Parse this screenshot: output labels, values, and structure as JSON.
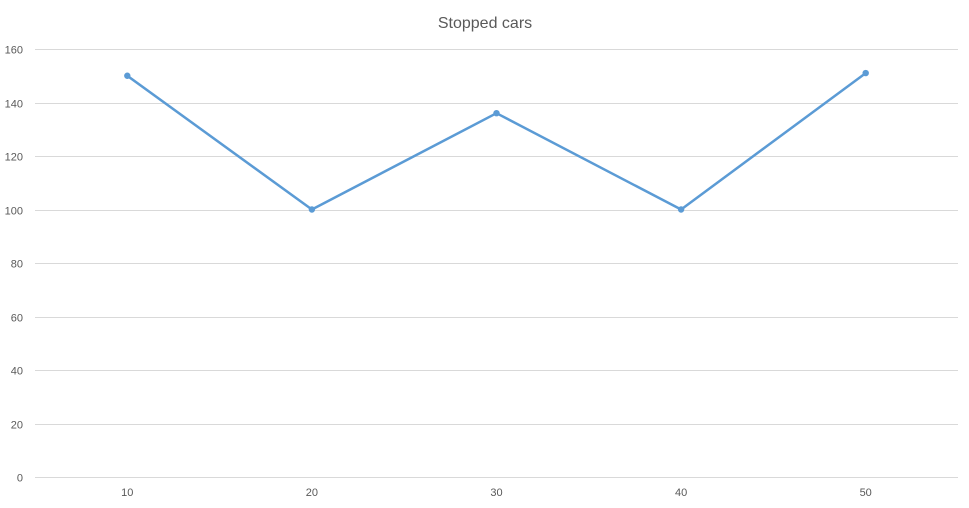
{
  "chart_data": {
    "type": "line",
    "title": "Stopped cars",
    "xlabel": "",
    "ylabel": "",
    "categories": [
      "10",
      "20",
      "30",
      "40",
      "50"
    ],
    "series": [
      {
        "values": [
          150,
          100,
          136,
          100,
          151
        ],
        "color": "#5b9bd5"
      }
    ],
    "ylim": [
      0,
      160
    ],
    "yticks": [
      0,
      20,
      40,
      60,
      80,
      100,
      120,
      140,
      160
    ],
    "grid": true,
    "legend": "none"
  }
}
